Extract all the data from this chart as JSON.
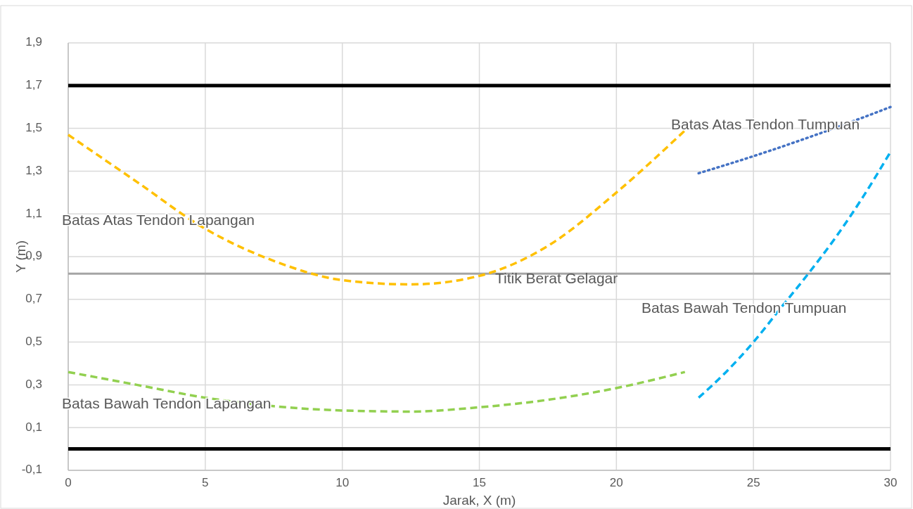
{
  "chart_data": {
    "type": "line",
    "xlabel": "Jarak, X (m)",
    "ylabel": "Y (m)",
    "xlim": [
      0,
      30
    ],
    "xticks": [
      0,
      5,
      10,
      15,
      20,
      25,
      30
    ],
    "ylim": [
      -0.1,
      1.9
    ],
    "yticks": [
      {
        "value": -0.1,
        "label": "-0,1"
      },
      {
        "value": 0.1,
        "label": "0,1"
      },
      {
        "value": 0.3,
        "label": "0,3"
      },
      {
        "value": 0.5,
        "label": "0,5"
      },
      {
        "value": 0.7,
        "label": "0,7"
      },
      {
        "value": 0.9,
        "label": "0,9"
      },
      {
        "value": 1.1,
        "label": "1,1"
      },
      {
        "value": 1.3,
        "label": "1,3"
      },
      {
        "value": 1.5,
        "label": "1,5"
      },
      {
        "value": 1.7,
        "label": "1,7"
      },
      {
        "value": 1.9,
        "label": "1,9"
      }
    ],
    "grid": true,
    "marker": "none",
    "series": [
      {
        "name": "Batas Atas Tendon Lapangan",
        "color": "#ffc000",
        "line_style": "dashed",
        "x": [
          0,
          2.5,
          5,
          7.5,
          10,
          12.5,
          15,
          17.5,
          20,
          22.5
        ],
        "values": [
          1.47,
          1.25,
          1.03,
          0.88,
          0.79,
          0.77,
          0.81,
          0.95,
          1.2,
          1.49
        ]
      },
      {
        "name": "Batas Bawah Tendon Lapangan",
        "color": "#92d050",
        "line_style": "dashed",
        "x": [
          0,
          2.5,
          5,
          7.5,
          10,
          12.5,
          15,
          17.5,
          20,
          22.5
        ],
        "values": [
          0.36,
          0.3,
          0.24,
          0.2,
          0.18,
          0.175,
          0.195,
          0.23,
          0.285,
          0.36
        ]
      },
      {
        "name": "Batas Atas Tendon Tumpuan",
        "color": "#4472c4",
        "line_style": "dotted",
        "x": [
          23,
          25,
          27.5,
          30
        ],
        "values": [
          1.29,
          1.37,
          1.48,
          1.6
        ]
      },
      {
        "name": "Batas Bawah Tendon Tumpuan",
        "color": "#00b0f0",
        "line_style": "dashed",
        "x": [
          23,
          24,
          25,
          26,
          27,
          28,
          29,
          30
        ],
        "values": [
          0.24,
          0.36,
          0.5,
          0.66,
          0.82,
          0.99,
          1.18,
          1.39
        ]
      }
    ],
    "ref_lines": [
      {
        "axis": "y",
        "value": 1.7,
        "color": "#000000"
      },
      {
        "axis": "y",
        "value": 0,
        "color": "#000000"
      },
      {
        "axis": "y",
        "value": 0.82,
        "color": "#a5a5a5",
        "label": "Titik Berat Gelagar"
      }
    ]
  }
}
